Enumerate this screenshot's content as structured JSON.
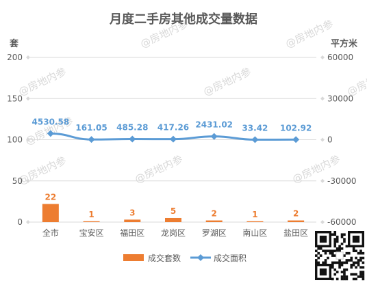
{
  "chart_data": {
    "type": "bar+line",
    "title": "月度二手房其他成交量数据",
    "categories": [
      "全市",
      "宝安区",
      "福田区",
      "龙岗区",
      "罗湖区",
      "南山区",
      "盐田区"
    ],
    "series": [
      {
        "name": "成交套数",
        "type": "bar",
        "axis": "left",
        "color": "#ed7d31",
        "values": [
          22,
          1,
          3,
          5,
          2,
          1,
          2
        ]
      },
      {
        "name": "成交面积",
        "type": "line",
        "axis": "right",
        "color": "#5b9bd5",
        "values": [
          4530.58,
          161.05,
          485.28,
          417.26,
          2431.02,
          33.42,
          102.92
        ],
        "labels": [
          "4530.58",
          "161.05",
          "485.28",
          "417.26",
          "2431.02",
          "33.42",
          "102.92"
        ]
      }
    ],
    "y_left": {
      "label": "套",
      "ylim": [
        0,
        200
      ],
      "ticks": [
        0,
        50,
        100,
        150,
        200
      ]
    },
    "y_right": {
      "label": "平方米",
      "ylim": [
        -60000,
        60000
      ],
      "ticks": [
        -60000,
        -30000,
        0,
        30000,
        60000
      ]
    },
    "grid": true,
    "legend": "bottom"
  },
  "watermark": "@房地内参",
  "colors": {
    "title": "#595959",
    "axis_text": "#595959",
    "grid": "#d9d9d9",
    "bar_label": "#ed7d31",
    "line_label": "#5b9bd5"
  },
  "icons": {
    "qr": "qr-code-icon"
  }
}
